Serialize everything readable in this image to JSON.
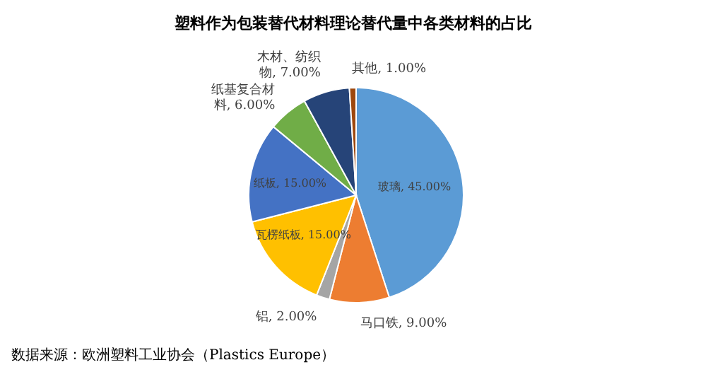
{
  "chart_data": {
    "type": "pie",
    "title": "塑料作为包装替代材料理论替代量中各类材料的占比",
    "categories": [
      "玻璃",
      "马口铁",
      "铝",
      "瓦楞纸板",
      "纸板",
      "纸基复合材料",
      "木材、纺织物",
      "其他"
    ],
    "values": [
      45,
      9,
      2,
      15,
      15,
      6,
      7,
      1
    ],
    "value_labels": [
      "45.00%",
      "9.00%",
      "2.00%",
      "15.00%",
      "15.00%",
      "6.00%",
      "7.00%",
      "1.00%"
    ],
    "colors": [
      "#5b9bd5",
      "#ed7d31",
      "#a5a5a5",
      "#ffc000",
      "#4472c4",
      "#70ad47",
      "#264478",
      "#9e480e"
    ],
    "annotations": [
      "数据来源：欧洲塑料工业协会（Plastics Europe）"
    ]
  }
}
